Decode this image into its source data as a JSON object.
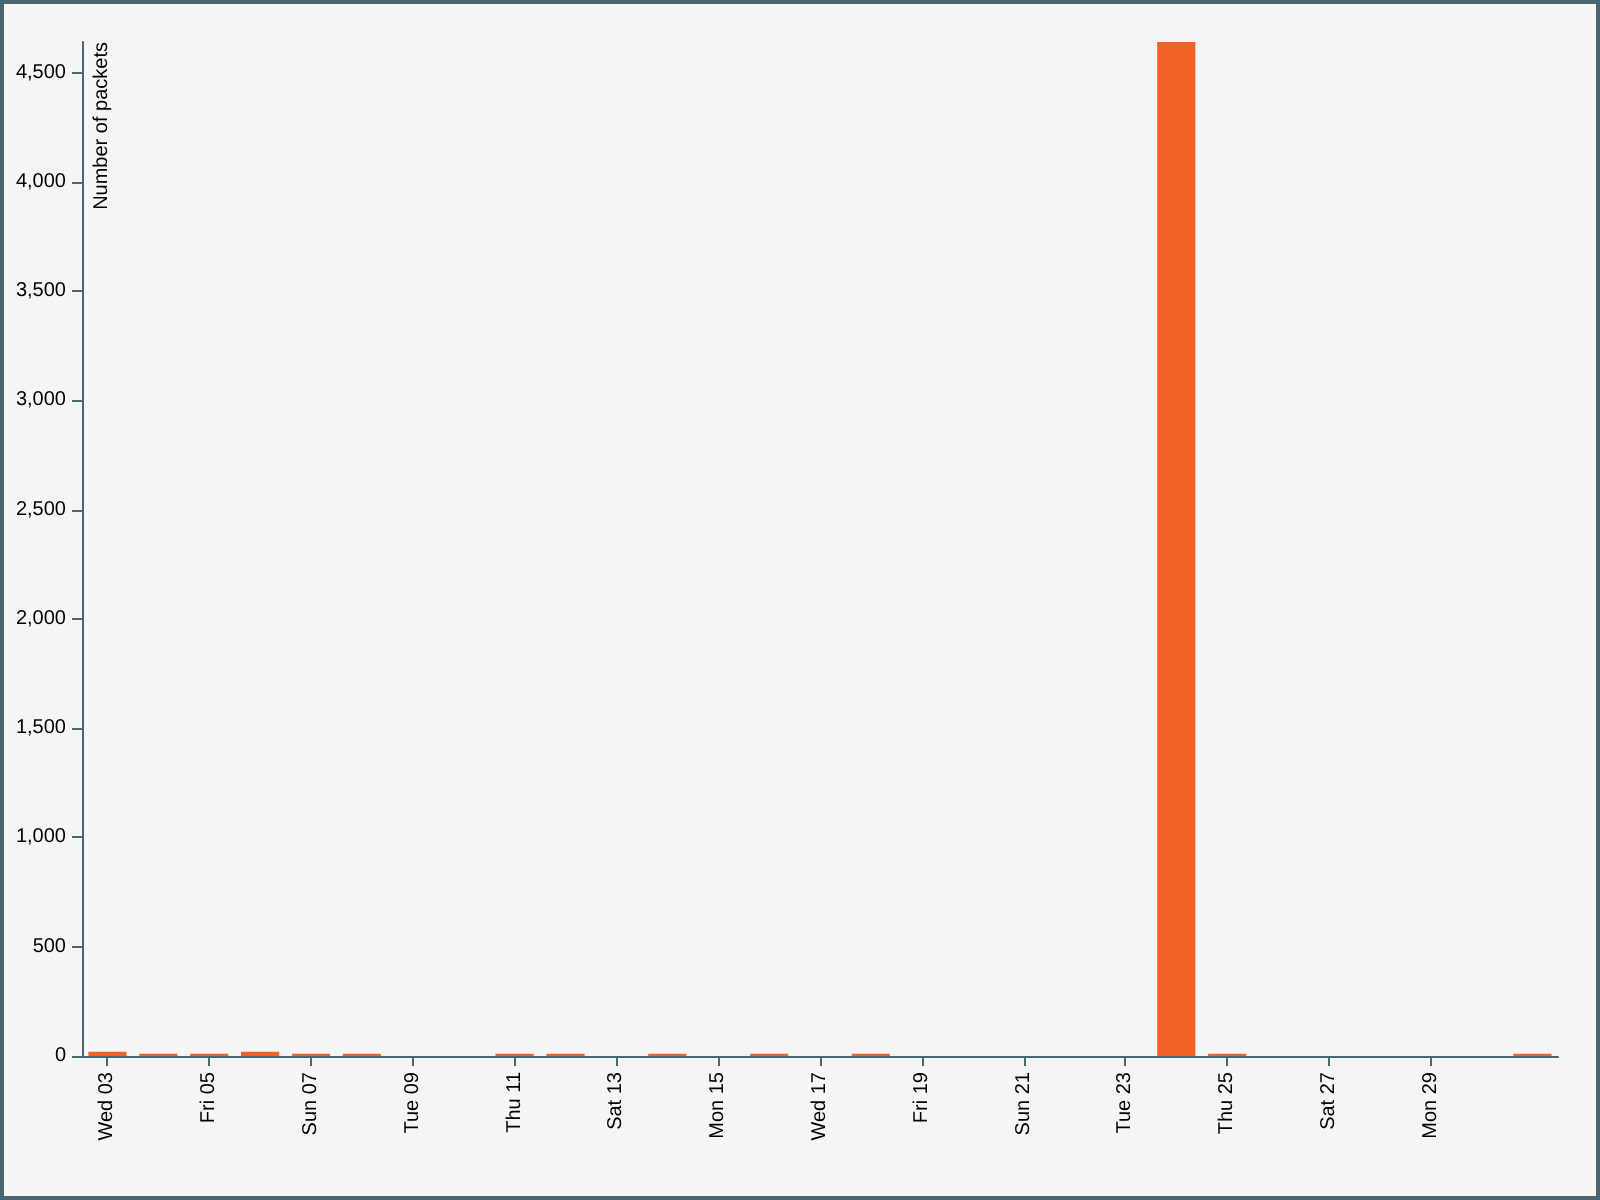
{
  "chart_data": {
    "type": "bar",
    "ylabel": "Number of packets",
    "categories": [
      "Wed 03",
      null,
      "Fri 05",
      null,
      "Sun 07",
      null,
      "Tue 09",
      null,
      "Thu 11",
      null,
      "Sat 13",
      null,
      "Mon 15",
      null,
      "Wed 17",
      null,
      "Fri 19",
      null,
      "Sun 21",
      null,
      "Tue 23",
      null,
      "Thu 25",
      null,
      "Sat 27",
      null,
      "Mon 29",
      null,
      null
    ],
    "values": [
      20,
      10,
      10,
      20,
      10,
      10,
      0,
      0,
      10,
      10,
      0,
      10,
      0,
      10,
      0,
      10,
      0,
      0,
      0,
      0,
      0,
      4640,
      10,
      0,
      0,
      0,
      0,
      0,
      10
    ],
    "color": "#f26125",
    "ylim": [
      0,
      4640
    ],
    "yticks": [
      0,
      500,
      {
        "value": 1000,
        "label": "1,000"
      },
      {
        "value": 1500,
        "label": "1,500"
      },
      {
        "value": 2000,
        "label": "2,000"
      },
      {
        "value": 2500,
        "label": "2,500"
      },
      {
        "value": 3000,
        "label": "3,000"
      },
      {
        "value": 3500,
        "label": "3,500"
      },
      {
        "value": 4000,
        "label": "4,000"
      },
      {
        "value": 4500,
        "label": "4,500"
      }
    ],
    "grid": false
  }
}
